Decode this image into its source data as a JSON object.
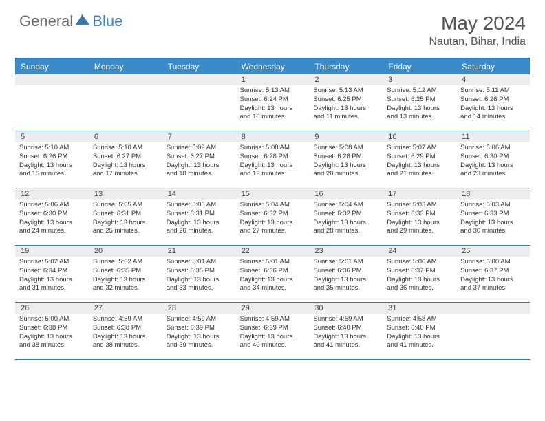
{
  "logo": {
    "general": "General",
    "blue": "Blue"
  },
  "header": {
    "month": "May 2024",
    "location": "Nautan, Bihar, India"
  },
  "colors": {
    "header_bg": "#3b8bc9",
    "border": "#2f7bbf",
    "daynum_bg": "#ecedee",
    "text": "#333333",
    "logo_gray": "#6b6b6b",
    "logo_blue": "#3b82c4"
  },
  "day_names": [
    "Sunday",
    "Monday",
    "Tuesday",
    "Wednesday",
    "Thursday",
    "Friday",
    "Saturday"
  ],
  "weeks": [
    [
      null,
      null,
      null,
      {
        "n": "1",
        "sr": "5:13 AM",
        "ss": "6:24 PM",
        "dl": "13 hours and 10 minutes."
      },
      {
        "n": "2",
        "sr": "5:13 AM",
        "ss": "6:25 PM",
        "dl": "13 hours and 11 minutes."
      },
      {
        "n": "3",
        "sr": "5:12 AM",
        "ss": "6:25 PM",
        "dl": "13 hours and 13 minutes."
      },
      {
        "n": "4",
        "sr": "5:11 AM",
        "ss": "6:26 PM",
        "dl": "13 hours and 14 minutes."
      }
    ],
    [
      {
        "n": "5",
        "sr": "5:10 AM",
        "ss": "6:26 PM",
        "dl": "13 hours and 15 minutes."
      },
      {
        "n": "6",
        "sr": "5:10 AM",
        "ss": "6:27 PM",
        "dl": "13 hours and 17 minutes."
      },
      {
        "n": "7",
        "sr": "5:09 AM",
        "ss": "6:27 PM",
        "dl": "13 hours and 18 minutes."
      },
      {
        "n": "8",
        "sr": "5:08 AM",
        "ss": "6:28 PM",
        "dl": "13 hours and 19 minutes."
      },
      {
        "n": "9",
        "sr": "5:08 AM",
        "ss": "6:28 PM",
        "dl": "13 hours and 20 minutes."
      },
      {
        "n": "10",
        "sr": "5:07 AM",
        "ss": "6:29 PM",
        "dl": "13 hours and 21 minutes."
      },
      {
        "n": "11",
        "sr": "5:06 AM",
        "ss": "6:30 PM",
        "dl": "13 hours and 23 minutes."
      }
    ],
    [
      {
        "n": "12",
        "sr": "5:06 AM",
        "ss": "6:30 PM",
        "dl": "13 hours and 24 minutes."
      },
      {
        "n": "13",
        "sr": "5:05 AM",
        "ss": "6:31 PM",
        "dl": "13 hours and 25 minutes."
      },
      {
        "n": "14",
        "sr": "5:05 AM",
        "ss": "6:31 PM",
        "dl": "13 hours and 26 minutes."
      },
      {
        "n": "15",
        "sr": "5:04 AM",
        "ss": "6:32 PM",
        "dl": "13 hours and 27 minutes."
      },
      {
        "n": "16",
        "sr": "5:04 AM",
        "ss": "6:32 PM",
        "dl": "13 hours and 28 minutes."
      },
      {
        "n": "17",
        "sr": "5:03 AM",
        "ss": "6:33 PM",
        "dl": "13 hours and 29 minutes."
      },
      {
        "n": "18",
        "sr": "5:03 AM",
        "ss": "6:33 PM",
        "dl": "13 hours and 30 minutes."
      }
    ],
    [
      {
        "n": "19",
        "sr": "5:02 AM",
        "ss": "6:34 PM",
        "dl": "13 hours and 31 minutes."
      },
      {
        "n": "20",
        "sr": "5:02 AM",
        "ss": "6:35 PM",
        "dl": "13 hours and 32 minutes."
      },
      {
        "n": "21",
        "sr": "5:01 AM",
        "ss": "6:35 PM",
        "dl": "13 hours and 33 minutes."
      },
      {
        "n": "22",
        "sr": "5:01 AM",
        "ss": "6:36 PM",
        "dl": "13 hours and 34 minutes."
      },
      {
        "n": "23",
        "sr": "5:01 AM",
        "ss": "6:36 PM",
        "dl": "13 hours and 35 minutes."
      },
      {
        "n": "24",
        "sr": "5:00 AM",
        "ss": "6:37 PM",
        "dl": "13 hours and 36 minutes."
      },
      {
        "n": "25",
        "sr": "5:00 AM",
        "ss": "6:37 PM",
        "dl": "13 hours and 37 minutes."
      }
    ],
    [
      {
        "n": "26",
        "sr": "5:00 AM",
        "ss": "6:38 PM",
        "dl": "13 hours and 38 minutes."
      },
      {
        "n": "27",
        "sr": "4:59 AM",
        "ss": "6:38 PM",
        "dl": "13 hours and 38 minutes."
      },
      {
        "n": "28",
        "sr": "4:59 AM",
        "ss": "6:39 PM",
        "dl": "13 hours and 39 minutes."
      },
      {
        "n": "29",
        "sr": "4:59 AM",
        "ss": "6:39 PM",
        "dl": "13 hours and 40 minutes."
      },
      {
        "n": "30",
        "sr": "4:59 AM",
        "ss": "6:40 PM",
        "dl": "13 hours and 41 minutes."
      },
      {
        "n": "31",
        "sr": "4:58 AM",
        "ss": "6:40 PM",
        "dl": "13 hours and 41 minutes."
      },
      null
    ]
  ],
  "labels": {
    "sunrise": "Sunrise:",
    "sunset": "Sunset:",
    "daylight": "Daylight:"
  }
}
